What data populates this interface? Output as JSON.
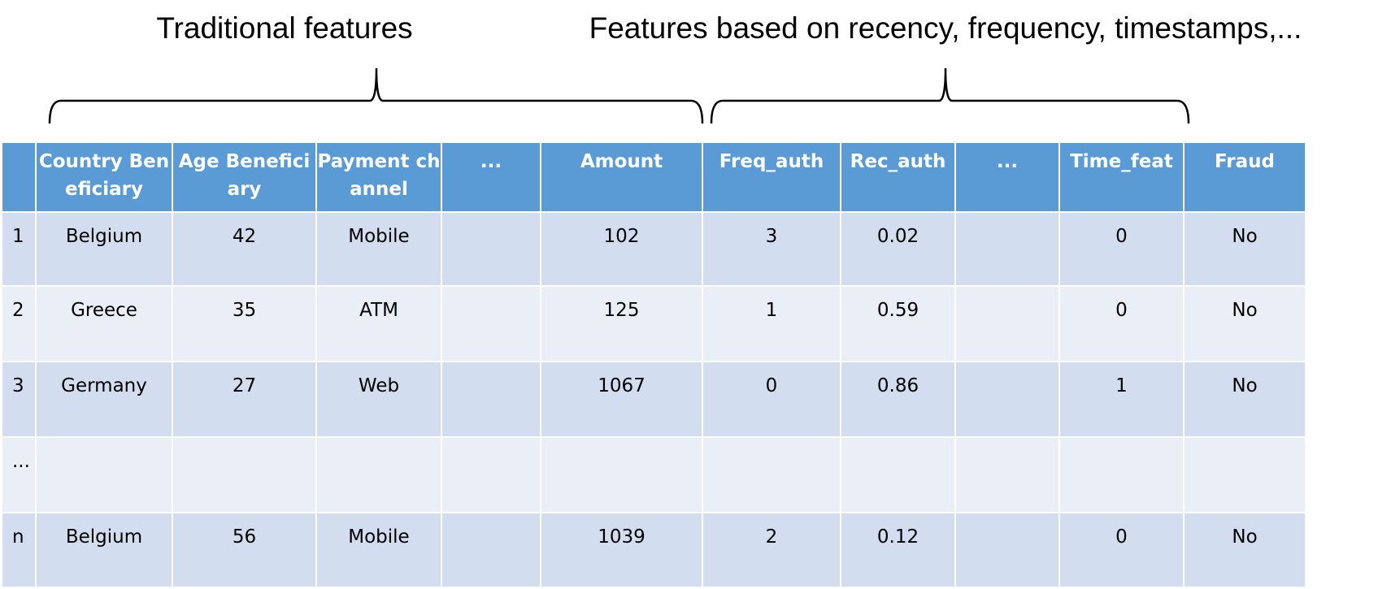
{
  "titles": {
    "left": "Traditional features",
    "right": "Features based on recency, frequency, timestamps,..."
  },
  "table": {
    "headers": [
      "Country Beneficiary",
      "Age Beneficiary",
      "Payment channel",
      "...",
      "Amount",
      "Freq_auth",
      "Rec_auth",
      "...",
      "Time_feat",
      "Fraud"
    ],
    "rows": [
      {
        "label": "1",
        "cells": [
          "Belgium",
          "42",
          "Mobile",
          null,
          "102",
          "3",
          "0.02",
          null,
          "0",
          "No"
        ]
      },
      {
        "label": "2",
        "cells": [
          "Greece",
          "35",
          "ATM",
          null,
          "125",
          "1",
          "0.59",
          null,
          "0",
          "No"
        ]
      },
      {
        "label": "3",
        "cells": [
          "Germany",
          "27",
          "Web",
          null,
          "1067",
          "0",
          "0.86",
          null,
          "1",
          "No"
        ]
      },
      {
        "label": "...",
        "cells": [
          null,
          null,
          null,
          null,
          null,
          null,
          null,
          null,
          null,
          null
        ]
      },
      {
        "label": "n",
        "cells": [
          "Belgium",
          "56",
          "Mobile",
          null,
          "1039",
          "2",
          "0.12",
          null,
          "0",
          "No"
        ]
      }
    ]
  }
}
